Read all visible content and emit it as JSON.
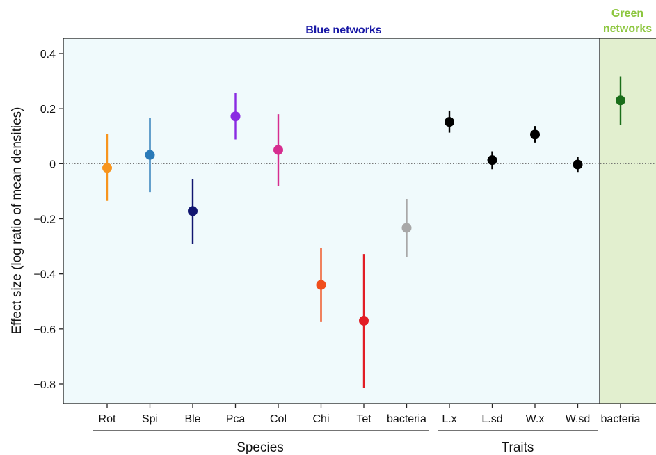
{
  "chart_data": {
    "type": "scatter",
    "ylabel": "Effect size (log ratio of mean densities)",
    "ylim": [
      -0.87,
      0.45
    ],
    "yticks": [
      0.4,
      0.2,
      0,
      -0.2,
      -0.4,
      -0.6,
      -0.8
    ],
    "ytick_labels": [
      "0.4",
      "0.2",
      "0",
      "−0.2",
      "−0.4",
      "−0.6",
      "−0.8"
    ],
    "reference_line": 0,
    "panels": [
      {
        "title": "Blue networks",
        "title_color": "#1a1aa6",
        "background": "#f0fafc"
      },
      {
        "title_lines": [
          "Green",
          "networks"
        ],
        "title_color": "#8dc63f",
        "background": "#e2efcf"
      }
    ],
    "groups": [
      {
        "label": "Species",
        "categories": [
          "Rot",
          "Spi",
          "Ble",
          "Pca",
          "Col",
          "Chi",
          "Tet",
          "bacteria"
        ]
      },
      {
        "label": "Traits",
        "categories": [
          "L.x",
          "L.sd",
          "W.x",
          "W.sd"
        ]
      }
    ],
    "points": [
      {
        "category": "Rot",
        "panel": 0,
        "value": -0.015,
        "lower": -0.135,
        "upper": 0.108,
        "color": "#f7941d"
      },
      {
        "category": "Spi",
        "panel": 0,
        "value": 0.032,
        "lower": -0.103,
        "upper": 0.167,
        "color": "#2a7ab8"
      },
      {
        "category": "Ble",
        "panel": 0,
        "value": -0.172,
        "lower": -0.29,
        "upper": -0.055,
        "color": "#101570"
      },
      {
        "category": "Pca",
        "panel": 0,
        "value": 0.172,
        "lower": 0.088,
        "upper": 0.258,
        "color": "#8a2be2"
      },
      {
        "category": "Col",
        "panel": 0,
        "value": 0.05,
        "lower": -0.08,
        "upper": 0.18,
        "color": "#d62d8f"
      },
      {
        "category": "Chi",
        "panel": 0,
        "value": -0.44,
        "lower": -0.575,
        "upper": -0.305,
        "color": "#f04e1c"
      },
      {
        "category": "Tet",
        "panel": 0,
        "value": -0.57,
        "lower": -0.815,
        "upper": -0.328,
        "color": "#e21d25"
      },
      {
        "category": "bacteria",
        "panel": 0,
        "value": -0.233,
        "lower": -0.34,
        "upper": -0.128,
        "color": "#a8a8a8"
      },
      {
        "category": "L.x",
        "panel": 0,
        "value": 0.152,
        "lower": 0.113,
        "upper": 0.193,
        "color": "#000000"
      },
      {
        "category": "L.sd",
        "panel": 0,
        "value": 0.013,
        "lower": -0.02,
        "upper": 0.045,
        "color": "#000000"
      },
      {
        "category": "W.x",
        "panel": 0,
        "value": 0.106,
        "lower": 0.077,
        "upper": 0.137,
        "color": "#000000"
      },
      {
        "category": "W.sd",
        "panel": 0,
        "value": -0.003,
        "lower": -0.03,
        "upper": 0.025,
        "color": "#000000"
      },
      {
        "category": "bacteria",
        "panel": 1,
        "value": 0.23,
        "lower": 0.142,
        "upper": 0.318,
        "color": "#1a6e1a"
      }
    ]
  }
}
